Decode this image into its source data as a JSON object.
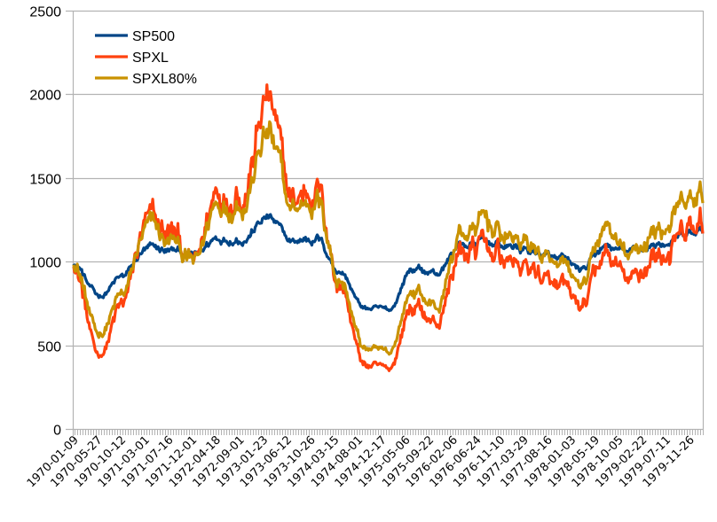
{
  "chart_data": {
    "type": "line",
    "title": "",
    "xlabel": "",
    "ylabel": "",
    "ylim": [
      0,
      2500
    ],
    "yticks": [
      0,
      500,
      1000,
      1500,
      2000,
      2500
    ],
    "grid": true,
    "legend_position": "top-left",
    "x": [
      "1970-01-09",
      "1970-05-27",
      "1970-10-12",
      "1971-03-01",
      "1971-07-16",
      "1971-12-01",
      "1972-04-18",
      "1972-09-01",
      "1973-01-23",
      "1973-06-12",
      "1973-10-26",
      "1974-03-15",
      "1974-08-01",
      "1974-12-17",
      "1975-05-06",
      "1975-09-22",
      "1976-02-06",
      "1976-06-24",
      "1976-11-10",
      "1977-03-29",
      "1977-08-16",
      "1978-01-03",
      "1978-05-19",
      "1978-10-05",
      "1979-02-22",
      "1979-07-11",
      "1979-11-26"
    ],
    "series": [
      {
        "name": "SP500",
        "color": "#004586",
        "values": [
          1000,
          790,
          900,
          1060,
          1060,
          1030,
          1150,
          1160,
          1260,
          1110,
          1150,
          950,
          720,
          700,
          960,
          930,
          1100,
          1110,
          1090,
          1060,
          1000,
          940,
          1080,
          1050,
          1100,
          1130,
          1170
        ]
      },
      {
        "name": "SPXL",
        "color": "#ff420e",
        "values": [
          1010,
          430,
          720,
          1190,
          1150,
          960,
          1460,
          1540,
          1950,
          1330,
          1480,
          890,
          380,
          340,
          740,
          630,
          1060,
          1070,
          1000,
          950,
          800,
          700,
          1020,
          850,
          1030,
          1100,
          1170
        ]
      },
      {
        "name": "SPXL80%",
        "color": "#c99200",
        "values": [
          1010,
          560,
          780,
          1170,
          1110,
          980,
          1380,
          1430,
          1760,
          1280,
          1400,
          910,
          480,
          440,
          830,
          730,
          1160,
          1220,
          1140,
          1090,
          930,
          830,
          1180,
          1000,
          1180,
          1280,
          1350
        ]
      }
    ]
  }
}
